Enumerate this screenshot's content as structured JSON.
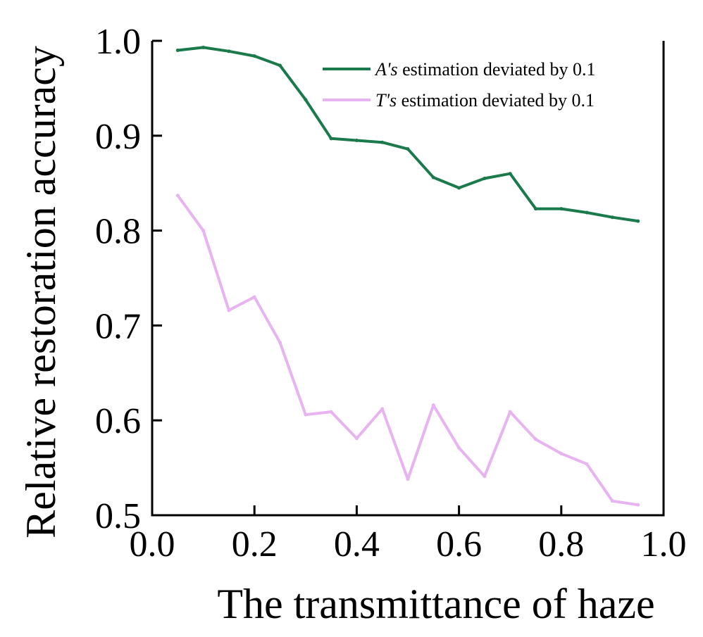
{
  "chart_data": {
    "type": "line",
    "title": "",
    "xlabel": "The transmittance of haze",
    "ylabel": "Relative restoration accuracy",
    "xlim": [
      0.0,
      1.0
    ],
    "ylim": [
      0.5,
      1.0
    ],
    "xticks": [
      0.0,
      0.2,
      0.4,
      0.6,
      0.8,
      1.0
    ],
    "xtick_labels": [
      "0.0",
      "0.2",
      "0.4",
      "0.6",
      "0.8",
      "1.0"
    ],
    "yticks": [
      0.5,
      0.6,
      0.7,
      0.8,
      0.9,
      1.0
    ],
    "ytick_labels": [
      "0.5",
      "0.6",
      "0.7",
      "0.8",
      "0.9",
      "1.0"
    ],
    "grid": false,
    "legend_position": "top-right",
    "series": [
      {
        "name": "A's estimation deviated by 0.1",
        "legend_italic": "A's",
        "legend_rest": " estimation deviated by 0.1",
        "color": "#1b7a4c",
        "x": [
          0.05,
          0.1,
          0.15,
          0.2,
          0.25,
          0.3,
          0.35,
          0.4,
          0.45,
          0.5,
          0.55,
          0.6,
          0.65,
          0.7,
          0.75,
          0.8,
          0.85,
          0.9,
          0.95
        ],
        "y": [
          0.99,
          0.993,
          0.989,
          0.984,
          0.974,
          0.938,
          0.897,
          0.895,
          0.893,
          0.886,
          0.856,
          0.845,
          0.855,
          0.86,
          0.823,
          0.823,
          0.819,
          0.814,
          0.81
        ]
      },
      {
        "name": "T's estimation deviated by 0.1",
        "legend_italic": "T's",
        "legend_rest": " estimation deviated by 0.1",
        "color": "#e7b3f0",
        "x": [
          0.05,
          0.1,
          0.15,
          0.2,
          0.25,
          0.3,
          0.35,
          0.4,
          0.45,
          0.5,
          0.55,
          0.6,
          0.65,
          0.7,
          0.75,
          0.8,
          0.85,
          0.9,
          0.95
        ],
        "y": [
          0.837,
          0.8,
          0.716,
          0.73,
          0.682,
          0.606,
          0.609,
          0.581,
          0.612,
          0.538,
          0.616,
          0.571,
          0.541,
          0.609,
          0.58,
          0.565,
          0.554,
          0.515,
          0.511
        ]
      }
    ]
  }
}
